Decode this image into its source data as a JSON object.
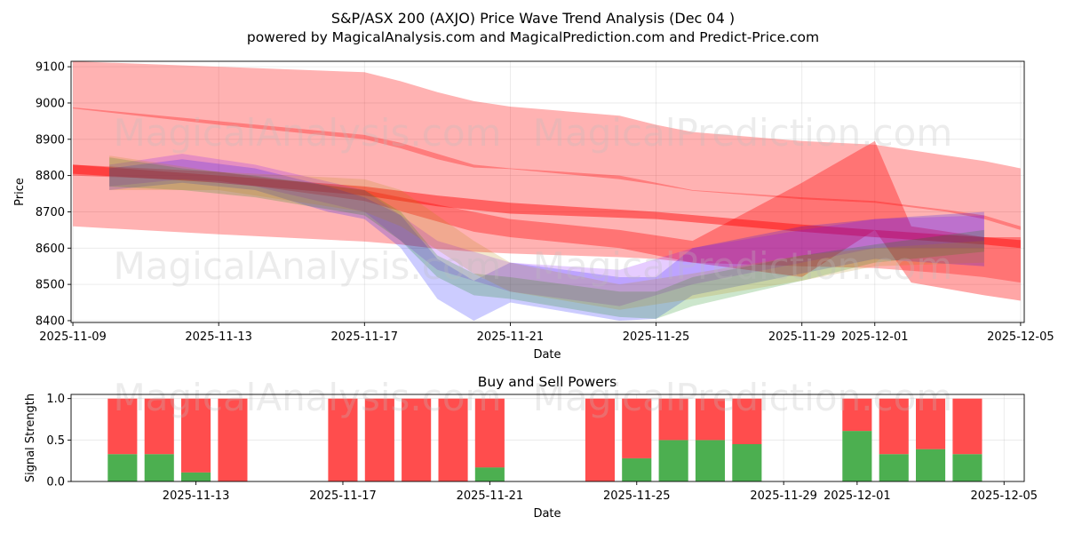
{
  "title": "S&P/ASX 200 (AXJO) Price Wave Trend Analysis (Dec 04 )",
  "subtitle": "powered by MagicalAnalysis.com and MagicalPrediction.com and Predict-Price.com",
  "watermarks": [
    "MagicalAnalysis.com",
    "MagicalPrediction.com"
  ],
  "chart_data": [
    {
      "type": "area",
      "name": "price-wave-chart",
      "xlabel": "Date",
      "ylabel": "Price",
      "xlim": [
        "2025-11-08.95",
        "2025-12-05.1"
      ],
      "ylim": [
        8395,
        9115
      ],
      "x_ticks": [
        "2025-11-09",
        "2025-11-13",
        "2025-11-17",
        "2025-11-21",
        "2025-11-25",
        "2025-11-29",
        "2025-12-01",
        "2025-12-05"
      ],
      "y_ticks": [
        8400,
        8500,
        8600,
        8700,
        8800,
        8900,
        9000,
        9100
      ],
      "grid": true,
      "series": [
        {
          "name": "long-wave-upper",
          "color": "#ff0000",
          "opacity": 0.3,
          "x": [
            "2025-11-09",
            "2025-11-13",
            "2025-11-17",
            "2025-11-18",
            "2025-11-19",
            "2025-11-20",
            "2025-11-21",
            "2025-11-24",
            "2025-11-25",
            "2025-11-26",
            "2025-11-29",
            "2025-12-01",
            "2025-12-03",
            "2025-12-04",
            "2025-12-05"
          ],
          "upper": [
            9115,
            9100,
            9085,
            9060,
            9030,
            9005,
            8990,
            8965,
            8940,
            8920,
            8895,
            8885,
            8855,
            8840,
            8820
          ],
          "lower": [
            8985,
            8940,
            8900,
            8875,
            8845,
            8822,
            8818,
            8790,
            8775,
            8758,
            8735,
            8725,
            8700,
            8680,
            8650
          ]
        },
        {
          "name": "long-wave-lower",
          "color": "#ff0000",
          "opacity": 0.3,
          "x": [
            "2025-11-09",
            "2025-11-13",
            "2025-11-17",
            "2025-11-18",
            "2025-11-19",
            "2025-11-20",
            "2025-11-21",
            "2025-11-24",
            "2025-11-25",
            "2025-11-26",
            "2025-11-29",
            "2025-12-01",
            "2025-12-03",
            "2025-12-04",
            "2025-12-05"
          ],
          "upper": [
            8988,
            8950,
            8912,
            8890,
            8860,
            8830,
            8820,
            8800,
            8780,
            8760,
            8740,
            8730,
            8705,
            8690,
            8660
          ],
          "lower": [
            8660,
            8638,
            8618,
            8610,
            8598,
            8590,
            8585,
            8575,
            8570,
            8560,
            8550,
            8545,
            8530,
            8520,
            8505
          ]
        },
        {
          "name": "mid-wave-down",
          "color": "#ff0000",
          "opacity": 0.45,
          "x": [
            "2025-11-09",
            "2025-11-13",
            "2025-11-17",
            "2025-11-19",
            "2025-11-21",
            "2025-11-25",
            "2025-11-29",
            "2025-12-01",
            "2025-12-04",
            "2025-12-05"
          ],
          "upper": [
            8830,
            8800,
            8770,
            8745,
            8725,
            8700,
            8665,
            8650,
            8630,
            8622
          ],
          "lower": [
            8805,
            8780,
            8745,
            8715,
            8695,
            8680,
            8645,
            8630,
            8610,
            8600
          ]
        },
        {
          "name": "red-spike-wave",
          "color": "#ff0000",
          "opacity": 0.35,
          "x": [
            "2025-11-09",
            "2025-11-13",
            "2025-11-17",
            "2025-11-20",
            "2025-11-21",
            "2025-11-24",
            "2025-11-26",
            "2025-11-29",
            "2025-12-01",
            "2025-12-02",
            "2025-12-04",
            "2025-12-05"
          ],
          "upper": [
            8830,
            8810,
            8760,
            8700,
            8680,
            8650,
            8620,
            8780,
            8895,
            8660,
            8630,
            8630
          ],
          "lower": [
            8800,
            8785,
            8730,
            8645,
            8630,
            8600,
            8560,
            8520,
            8650,
            8505,
            8470,
            8455
          ]
        },
        {
          "name": "blue-wave",
          "color": "#0000ff",
          "opacity": 0.2,
          "x": [
            "2025-11-10",
            "2025-11-12",
            "2025-11-14",
            "2025-11-16",
            "2025-11-17",
            "2025-11-18",
            "2025-11-19",
            "2025-11-20",
            "2025-11-21",
            "2025-11-24",
            "2025-11-25",
            "2025-11-26",
            "2025-11-29",
            "2025-12-01",
            "2025-12-04"
          ],
          "upper": [
            8820,
            8845,
            8820,
            8770,
            8740,
            8690,
            8570,
            8510,
            8560,
            8520,
            8520,
            8600,
            8660,
            8680,
            8700
          ],
          "lower": [
            8760,
            8780,
            8760,
            8700,
            8680,
            8600,
            8460,
            8400,
            8450,
            8400,
            8405,
            8470,
            8530,
            8570,
            8550
          ]
        },
        {
          "name": "purple-wave",
          "color": "#8000ff",
          "opacity": 0.2,
          "x": [
            "2025-11-10",
            "2025-11-12",
            "2025-11-14",
            "2025-11-17",
            "2025-11-19",
            "2025-11-21",
            "2025-11-24",
            "2025-11-26",
            "2025-11-29",
            "2025-12-01",
            "2025-12-04"
          ],
          "upper": [
            8830,
            8860,
            8830,
            8760,
            8620,
            8560,
            8540,
            8600,
            8650,
            8680,
            8690
          ],
          "lower": [
            8770,
            8790,
            8770,
            8700,
            8540,
            8480,
            8440,
            8500,
            8560,
            8600,
            8600
          ]
        },
        {
          "name": "green-wave",
          "color": "#008000",
          "opacity": 0.2,
          "x": [
            "2025-11-10",
            "2025-11-12",
            "2025-11-14",
            "2025-11-17",
            "2025-11-18",
            "2025-11-19",
            "2025-11-20",
            "2025-11-21",
            "2025-11-24",
            "2025-11-25",
            "2025-11-26",
            "2025-11-29",
            "2025-12-01",
            "2025-12-04"
          ],
          "upper": [
            8850,
            8820,
            8800,
            8760,
            8700,
            8580,
            8530,
            8520,
            8480,
            8480,
            8520,
            8580,
            8610,
            8650
          ],
          "lower": [
            8770,
            8760,
            8740,
            8690,
            8620,
            8520,
            8470,
            8460,
            8410,
            8405,
            8440,
            8510,
            8560,
            8590
          ]
        },
        {
          "name": "olive-wave",
          "color": "#b8860b",
          "opacity": 0.2,
          "x": [
            "2025-11-10",
            "2025-11-13",
            "2025-11-17",
            "2025-11-18",
            "2025-11-20",
            "2025-11-21",
            "2025-11-24",
            "2025-11-26",
            "2025-11-29",
            "2025-12-01",
            "2025-12-04"
          ],
          "upper": [
            8855,
            8810,
            8790,
            8760,
            8620,
            8560,
            8500,
            8530,
            8580,
            8600,
            8620
          ],
          "lower": [
            8760,
            8760,
            8700,
            8660,
            8530,
            8480,
            8430,
            8460,
            8510,
            8550,
            8560
          ]
        }
      ]
    },
    {
      "type": "bar",
      "name": "buy-sell-powers",
      "title": "Buy and Sell Powers",
      "xlabel": "Date",
      "ylabel": "Signal Strength",
      "ylim": [
        0,
        1.05
      ],
      "xlim": [
        "2025-11-09.6",
        "2025-12-05.55"
      ],
      "x_ticks": [
        "2025-11-13",
        "2025-11-17",
        "2025-11-21",
        "2025-11-25",
        "2025-11-29",
        "2025-12-01",
        "2025-12-05"
      ],
      "y_ticks": [
        0.0,
        0.5,
        1.0
      ],
      "buy_color": "#4caf50",
      "sell_color": "#ff4d4d",
      "dates": [
        "2025-11-11",
        "2025-11-12",
        "2025-11-13",
        "2025-11-14",
        "2025-11-17",
        "2025-11-18",
        "2025-11-19",
        "2025-11-20",
        "2025-11-21",
        "2025-11-24",
        "2025-11-25",
        "2025-11-26",
        "2025-11-27",
        "2025-11-28",
        "2025-12-01",
        "2025-12-02",
        "2025-12-03",
        "2025-12-04"
      ],
      "buy": [
        0.33,
        0.33,
        0.11,
        0.0,
        0.0,
        0.0,
        0.0,
        0.0,
        0.17,
        0.0,
        0.28,
        0.5,
        0.5,
        0.45,
        0.61,
        0.33,
        0.39,
        0.33
      ],
      "sell": [
        0.67,
        0.67,
        0.89,
        1.0,
        1.0,
        1.0,
        1.0,
        1.0,
        0.83,
        1.0,
        0.72,
        0.5,
        0.5,
        0.55,
        0.39,
        0.67,
        0.61,
        0.67
      ]
    }
  ]
}
